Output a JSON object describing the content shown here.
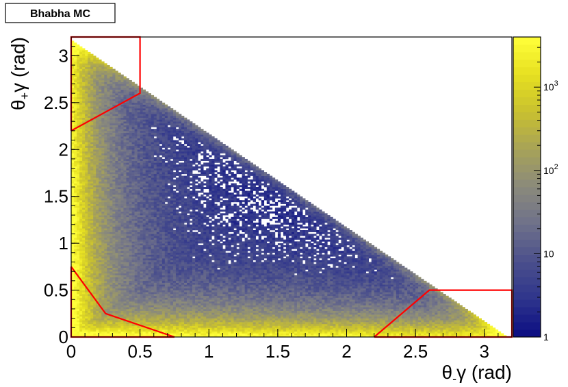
{
  "chart_data": {
    "type": "heatmap",
    "title": "Bhabha MC",
    "xlabel": {
      "symbol": "θ",
      "sub": "-",
      "tail": "γ (rad)"
    },
    "ylabel": {
      "symbol": "θ",
      "sub": "+",
      "tail": "γ (rad)"
    },
    "xlim": [
      0,
      3.2
    ],
    "ylim": [
      0,
      3.2
    ],
    "x_ticks": [
      {
        "value": 0,
        "label": "0"
      },
      {
        "value": 0.5,
        "label": "0.5"
      },
      {
        "value": 1,
        "label": "1"
      },
      {
        "value": 1.5,
        "label": "1.5"
      },
      {
        "value": 2,
        "label": "2"
      },
      {
        "value": 2.5,
        "label": "2.5"
      },
      {
        "value": 3,
        "label": "3"
      }
    ],
    "y_ticks": [
      {
        "value": 0,
        "label": "0"
      },
      {
        "value": 0.5,
        "label": "0.5"
      },
      {
        "value": 1,
        "label": "1"
      },
      {
        "value": 1.5,
        "label": "1.5"
      },
      {
        "value": 2,
        "label": "2"
      },
      {
        "value": 2.5,
        "label": "2.5"
      },
      {
        "value": 3,
        "label": "3"
      }
    ],
    "bins": {
      "nx": 160,
      "ny": 160
    },
    "colorbar": {
      "scale": "log",
      "range": [
        1,
        4000
      ],
      "ticks": [
        {
          "value": 1,
          "base": "1",
          "exp": ""
        },
        {
          "value": 10,
          "base": "10",
          "exp": ""
        },
        {
          "value": 100,
          "base": "10",
          "exp": "2"
        },
        {
          "value": 1000,
          "base": "10",
          "exp": "3"
        }
      ],
      "colors": [
        "#0a0c82",
        "#2e348c",
        "#4a4f8c",
        "#6e708a",
        "#8a8a7c",
        "#a7a258",
        "#c8c030",
        "#e6e020",
        "#ffff3a"
      ]
    },
    "cut_regions": [
      {
        "name": "top-left",
        "points": [
          [
            0,
            2.2
          ],
          [
            0,
            3.2
          ],
          [
            0.5,
            3.2
          ],
          [
            0.5,
            2.6
          ],
          [
            0,
            2.2
          ]
        ]
      },
      {
        "name": "bottom-left",
        "points": [
          [
            0,
            0.75
          ],
          [
            0.25,
            0.25
          ],
          [
            0.75,
            0
          ],
          [
            0,
            0
          ],
          [
            0,
            0.75
          ]
        ]
      },
      {
        "name": "bottom-right",
        "points": [
          [
            2.2,
            0
          ],
          [
            2.6,
            0.5
          ],
          [
            3.2,
            0.5
          ],
          [
            3.2,
            0
          ],
          [
            2.2,
            0
          ]
        ]
      }
    ],
    "cut_color": "#ff0000",
    "grid": false
  }
}
